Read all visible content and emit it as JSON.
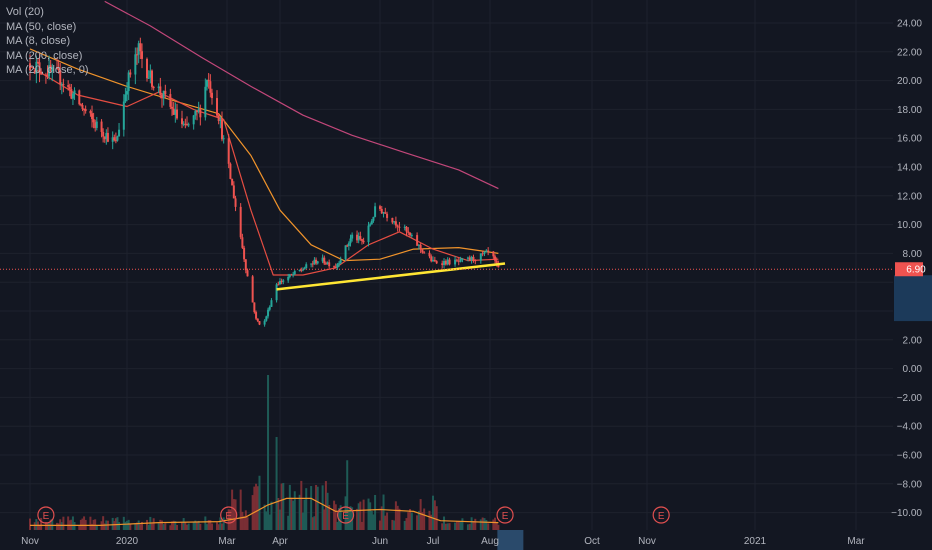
{
  "legend": [
    "Vol (20)",
    "MA (50, close)",
    "MA (8, close)",
    "MA (200, close)",
    "MA (20, close, 0)"
  ],
  "price_tag": "6.90",
  "earnings_marker": "E",
  "chart_data": {
    "type": "candlestick",
    "x_ticks": [
      "Nov",
      "2020",
      "Mar",
      "Apr",
      "Jun",
      "Jul",
      "Aug",
      "Oct",
      "Nov",
      "2021",
      "Mar"
    ],
    "y_ticks": [
      "24.00",
      "22.00",
      "20.00",
      "18.00",
      "16.00",
      "14.00",
      "12.00",
      "10.00",
      "8.00",
      "6.00",
      "4.00",
      "2.00",
      "0.00",
      "−2.00",
      "−4.00",
      "−6.00",
      "−8.00",
      "−10.00"
    ],
    "ylim": [
      -11.2,
      25.5
    ],
    "last_price": 6.9,
    "colors": {
      "up": "#26a69a",
      "down": "#ef5350",
      "ma200": "#c2477a",
      "ma50": "#f0932b",
      "ma20": "#e54d42",
      "ma8": "#1fa3a8",
      "trendline": "#ffe633",
      "price_line": "#ef5350",
      "tag": "#ef5350"
    },
    "price_path": [
      [
        "2019-11-01",
        21.2
      ],
      [
        "2019-11-20",
        20.2
      ],
      [
        "2019-12-10",
        17.2
      ],
      [
        "2019-12-25",
        15.6
      ],
      [
        "2020-01-01",
        19.8
      ],
      [
        "2020-01-08",
        22.1
      ],
      [
        "2020-01-15",
        20.2
      ],
      [
        "2020-01-25",
        18.5
      ],
      [
        "2020-02-05",
        16.6
      ],
      [
        "2020-02-15",
        18.1
      ],
      [
        "2020-02-18",
        20.3
      ],
      [
        "2020-02-25",
        17.6
      ],
      [
        "2020-03-05",
        12.0
      ],
      [
        "2020-03-12",
        7.0
      ],
      [
        "2020-03-18",
        3.4
      ],
      [
        "2020-03-22",
        2.9
      ],
      [
        "2020-03-30",
        5.9
      ],
      [
        "2020-04-10",
        6.6
      ],
      [
        "2020-04-25",
        7.6
      ],
      [
        "2020-05-05",
        7.1
      ],
      [
        "2020-05-15",
        9.2
      ],
      [
        "2020-05-22",
        8.8
      ],
      [
        "2020-05-30",
        11.3
      ],
      [
        "2020-06-08",
        10.4
      ],
      [
        "2020-06-15",
        9.6
      ],
      [
        "2020-06-25",
        8.2
      ],
      [
        "2020-07-01",
        7.4
      ],
      [
        "2020-07-15",
        7.4
      ],
      [
        "2020-07-25",
        7.7
      ],
      [
        "2020-08-01",
        8.1
      ],
      [
        "2020-08-06",
        6.9
      ]
    ],
    "ma200": [
      [
        "2019-12-18",
        25.5
      ],
      [
        "2020-01-15",
        23.8
      ],
      [
        "2020-02-15",
        21.6
      ],
      [
        "2020-03-15",
        19.6
      ],
      [
        "2020-04-15",
        17.6
      ],
      [
        "2020-05-15",
        16.2
      ],
      [
        "2020-06-15",
        15.0
      ],
      [
        "2020-07-15",
        13.8
      ],
      [
        "2020-08-06",
        12.5
      ]
    ],
    "ma50": [
      [
        "2019-11-01",
        22.2
      ],
      [
        "2019-12-01",
        20.8
      ],
      [
        "2020-01-01",
        19.6
      ],
      [
        "2020-02-01",
        18.5
      ],
      [
        "2020-02-25",
        17.7
      ],
      [
        "2020-03-15",
        14.8
      ],
      [
        "2020-04-01",
        11.0
      ],
      [
        "2020-04-20",
        8.6
      ],
      [
        "2020-05-10",
        7.5
      ],
      [
        "2020-06-01",
        7.6
      ],
      [
        "2020-06-20",
        8.3
      ],
      [
        "2020-07-15",
        8.4
      ],
      [
        "2020-08-06",
        8.0
      ]
    ],
    "ma20": [
      [
        "2019-11-01",
        21.0
      ],
      [
        "2019-12-01",
        19.0
      ],
      [
        "2020-01-01",
        18.2
      ],
      [
        "2020-01-20",
        19.2
      ],
      [
        "2020-02-10",
        18.0
      ],
      [
        "2020-02-28",
        17.3
      ],
      [
        "2020-03-15",
        11.0
      ],
      [
        "2020-03-28",
        6.5
      ],
      [
        "2020-04-15",
        6.5
      ],
      [
        "2020-05-05",
        7.0
      ],
      [
        "2020-05-25",
        8.6
      ],
      [
        "2020-06-12",
        9.5
      ],
      [
        "2020-07-01",
        8.3
      ],
      [
        "2020-07-20",
        7.5
      ],
      [
        "2020-08-06",
        7.6
      ]
    ],
    "trendline": [
      [
        "2020-03-30",
        5.5
      ],
      [
        "2020-08-10",
        7.3
      ]
    ],
    "volume_ma": [
      [
        "2019-11-01",
        0.05
      ],
      [
        "2019-12-15",
        0.05
      ],
      [
        "2020-01-20",
        0.08
      ],
      [
        "2020-02-25",
        0.09
      ],
      [
        "2020-03-12",
        0.14
      ],
      [
        "2020-03-25",
        0.27
      ],
      [
        "2020-04-05",
        0.34
      ],
      [
        "2020-04-20",
        0.34
      ],
      [
        "2020-05-05",
        0.2
      ],
      [
        "2020-06-01",
        0.22
      ],
      [
        "2020-06-20",
        0.2
      ],
      [
        "2020-07-05",
        0.1
      ],
      [
        "2020-08-06",
        0.08
      ]
    ],
    "earnings_dates": [
      "2019-11-11",
      "2020-03-02",
      "2020-05-11",
      "2020-08-10",
      "2020-11-09"
    ],
    "volume_highlights": [
      [
        "2020-03-25",
        1.0
      ],
      [
        "2020-03-30",
        0.6
      ],
      [
        "2020-05-12",
        0.45
      ],
      [
        "2020-03-20",
        0.35
      ]
    ]
  }
}
